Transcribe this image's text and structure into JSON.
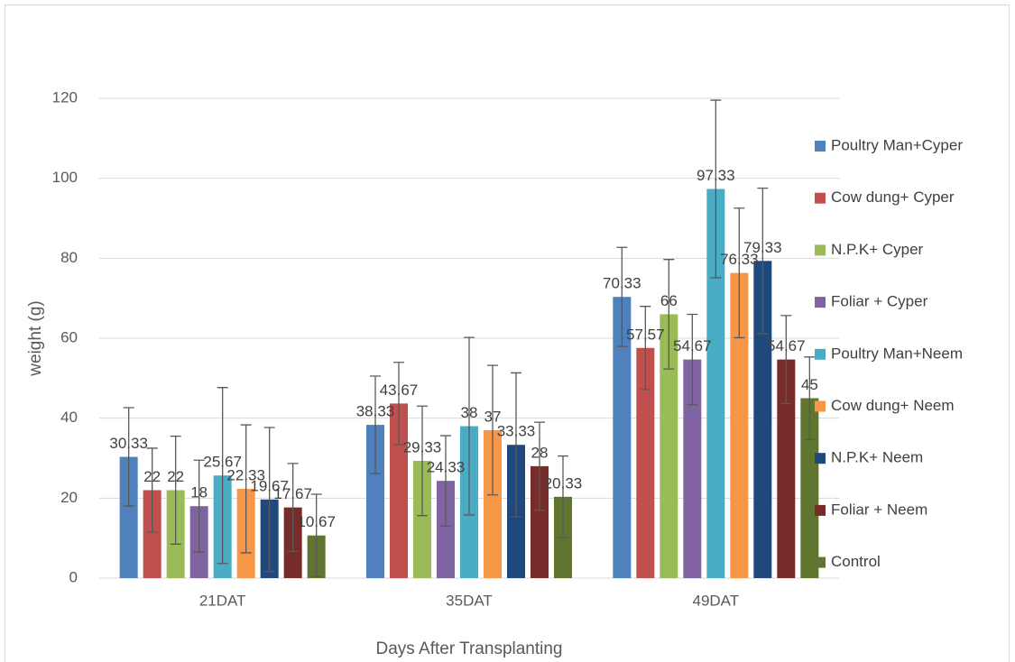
{
  "chart_data": {
    "type": "bar",
    "x_label": "Days After Transplanting",
    "y_label": "weight (g)",
    "categories": [
      "21DAT",
      "35DAT",
      "49DAT"
    ],
    "ylim": [
      0,
      120
    ],
    "yticks": [
      0,
      20,
      40,
      60,
      80,
      100,
      120
    ],
    "grid": true,
    "legend": "right",
    "series": [
      {
        "name": "Poultry Man+Cyper",
        "color": "#4f81bd",
        "values": [
          30.33,
          38.33,
          70.33
        ],
        "errors": [
          12.3,
          12.2,
          12.4
        ]
      },
      {
        "name": "Cow dung+ Cyper",
        "color": "#c0504d",
        "values": [
          22,
          43.67,
          57.57
        ],
        "errors": [
          10.5,
          10.3,
          10.4
        ]
      },
      {
        "name": "N.P.K+ Cyper",
        "color": "#9bbb59",
        "values": [
          22,
          29.33,
          66
        ],
        "errors": [
          13.5,
          13.7,
          13.7
        ]
      },
      {
        "name": "Foliar + Cyper",
        "color": "#8064a2",
        "values": [
          18,
          24.33,
          54.67
        ],
        "errors": [
          11.5,
          11.3,
          11.3
        ]
      },
      {
        "name": "Poultry Man+Neem",
        "color": "#4bacc6",
        "values": [
          25.67,
          38,
          97.33
        ],
        "errors": [
          22,
          22.2,
          22.2
        ]
      },
      {
        "name": "Cow dung+ Neem",
        "color": "#f79646",
        "values": [
          22.33,
          37,
          76.33
        ],
        "errors": [
          16,
          16.2,
          16.2
        ]
      },
      {
        "name": "N.P.K+ Neem",
        "color": "#1f497d",
        "values": [
          19.67,
          33.33,
          79.33
        ],
        "errors": [
          18,
          18,
          18.2
        ]
      },
      {
        "name": "Foliar + Neem",
        "color": "#772c2a",
        "values": [
          17.67,
          28,
          54.67
        ],
        "errors": [
          11,
          11,
          11
        ]
      },
      {
        "name": "Control",
        "color": "#5f7530",
        "values": [
          10.67,
          20.33,
          45
        ],
        "errors": [
          10.3,
          10.2,
          10.3
        ]
      }
    ]
  }
}
